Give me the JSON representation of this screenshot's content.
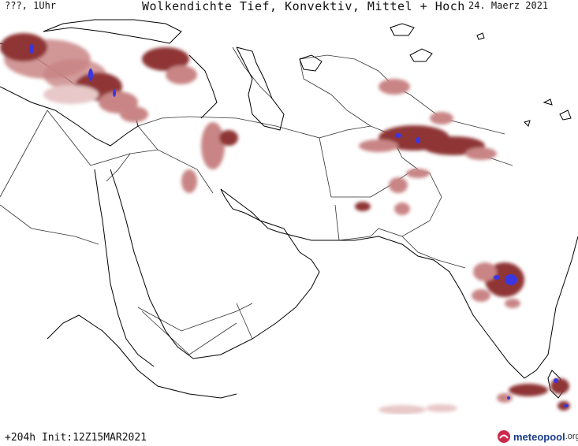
{
  "header": {
    "left": "???, 1Uhr",
    "title": "Wolkendichte  Tief, Konvektiv, Mittel + Hoch",
    "date": "24. Maerz 2021"
  },
  "footer": {
    "run_info": "+204h Init:12Z15MAR2021",
    "logo_brand": "meteopool",
    "logo_tld": ".org"
  },
  "colors": {
    "cloud_light": "#e8c8c8",
    "cloud_mid": "#c98585",
    "cloud_dark": "#8f3535",
    "cloud_peak": "#3a36e0",
    "coastline": "#000000",
    "border": "#555555",
    "logo_red": "#cc2a4b",
    "logo_blue": "#1a3c8c"
  }
}
